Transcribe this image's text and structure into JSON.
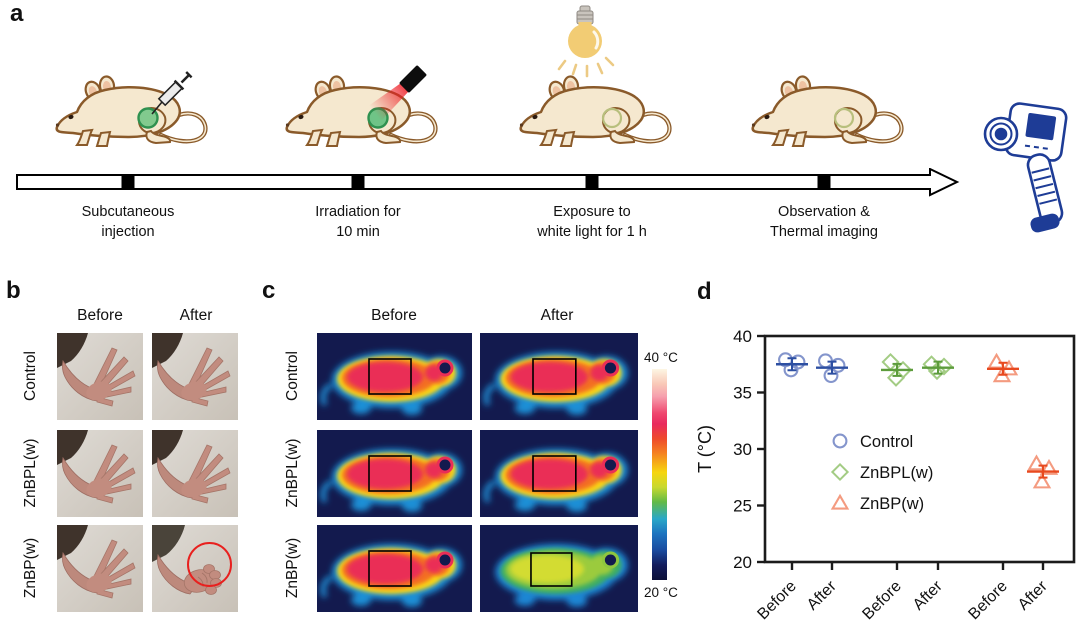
{
  "panels": {
    "a": {
      "label": "a",
      "steps": [
        {
          "line1": "Subcutaneous",
          "line2": "injection"
        },
        {
          "line1": "Irradiation for",
          "line2": "10 min"
        },
        {
          "line1": "Exposure to",
          "line2": "white light for 1 h"
        },
        {
          "line1": "Observation &",
          "line2": "Thermal imaging"
        }
      ],
      "icons": [
        "mouse-icon",
        "syringe-icon",
        "laser-pointer-icon",
        "light-bulb-icon",
        "thermal-camera-icon",
        "timeline-arrow"
      ]
    },
    "b": {
      "label": "b",
      "col_headers": [
        "Before",
        "After"
      ],
      "row_labels": [
        "Control",
        "ZnBPL(w)",
        "ZnBP(w)"
      ],
      "annotation": "red-circle-highlight on ZnBP(w) After paw"
    },
    "c": {
      "label": "c",
      "col_headers": [
        "Before",
        "After"
      ],
      "row_labels": [
        "Control",
        "ZnBPL(w)",
        "ZnBP(w)"
      ],
      "colorbar": {
        "top_label": "40 °C",
        "bottom_label": "20 °C"
      }
    },
    "d": {
      "label": "d"
    }
  },
  "chart_data": {
    "type": "scatter",
    "title": "",
    "ylabel": "T (°C)",
    "ylim": [
      20,
      40
    ],
    "yticks": [
      20,
      25,
      30,
      35,
      40
    ],
    "x_tick_labels": [
      "Before",
      "After",
      "Before",
      "After",
      "Before",
      "After"
    ],
    "legend_position": "inside-center-left",
    "series": [
      {
        "name": "Control",
        "marker": "circle",
        "color": "#8495cc",
        "mean_color": "#2d4fa2",
        "groups": [
          {
            "x": "Before",
            "values": [
              37.9,
              37.7,
              37.0
            ],
            "mean": 37.5
          },
          {
            "x": "After",
            "values": [
              37.8,
              37.4,
              36.5
            ],
            "mean": 37.2
          }
        ]
      },
      {
        "name": "ZnBPL(w)",
        "marker": "diamond",
        "color": "#a3cc84",
        "mean_color": "#5d9c3c",
        "groups": [
          {
            "x": "Before",
            "values": [
              37.7,
              37.0,
              36.3
            ],
            "mean": 37.0
          },
          {
            "x": "After",
            "values": [
              37.5,
              37.3,
              36.9
            ],
            "mean": 37.2
          }
        ]
      },
      {
        "name": "ZnBP(w)",
        "marker": "triangle",
        "color": "#f49b80",
        "mean_color": "#e8491f",
        "groups": [
          {
            "x": "Before",
            "values": [
              37.7,
              37.1,
              36.5
            ],
            "mean": 37.1
          },
          {
            "x": "After",
            "values": [
              28.7,
              28.3,
              27.1
            ],
            "mean": 28.0
          }
        ]
      }
    ]
  },
  "colors": {
    "series_control": "#8495cc",
    "series_znbpl": "#a3cc84",
    "series_znbp": "#f49b80",
    "thermal_hot_core": "#ea2e57",
    "thermal_cool_core": "#d3dc33",
    "thermal_background": "#131a4e",
    "colorbar_top": "#fdf6e3",
    "colorbar_bottom": "#0c1038",
    "annotation_red": "#e8201e",
    "camera_blue": "#1e3c96",
    "mouse_body": "#f5e8cf",
    "mouse_outline": "#8a5a2a",
    "injection_spot_green": "#6fc487"
  }
}
